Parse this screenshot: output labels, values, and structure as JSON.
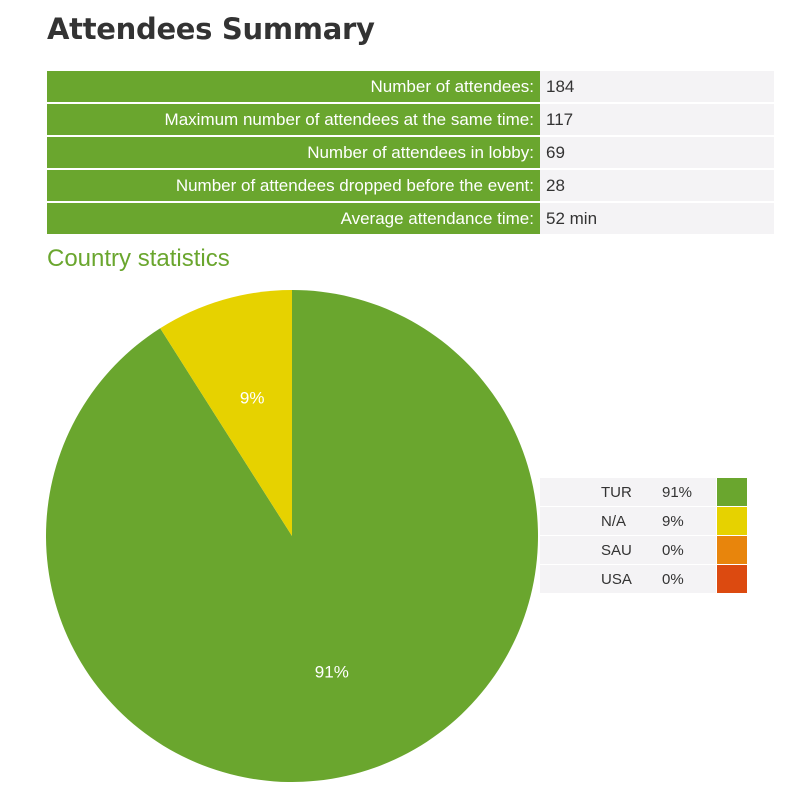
{
  "page": {
    "title": "Attendees Summary",
    "subtitle": "Country statistics"
  },
  "summary": [
    {
      "label": "Number of attendees:",
      "value": "184"
    },
    {
      "label": "Maximum number of attendees at the same time:",
      "value": "117"
    },
    {
      "label": "Number of attendees in lobby:",
      "value": "69"
    },
    {
      "label": "Number of attendees dropped before the event:",
      "value": "28"
    },
    {
      "label": "Average attendance time:",
      "value": "52 min"
    }
  ],
  "colors": {
    "accent": "#6aa62e",
    "value_bg": "#f4f3f5",
    "text": "#333333"
  },
  "chart_data": {
    "type": "pie",
    "title": "Country statistics",
    "categories": [
      "TUR",
      "N/A",
      "SAU",
      "USA"
    ],
    "values": [
      91,
      9,
      0,
      0
    ],
    "value_labels": [
      "91%",
      "9%",
      "0%",
      "0%"
    ],
    "colors": [
      "#6aa62e",
      "#e6d200",
      "#e8850c",
      "#dc4a10"
    ],
    "legend_position": "right"
  }
}
